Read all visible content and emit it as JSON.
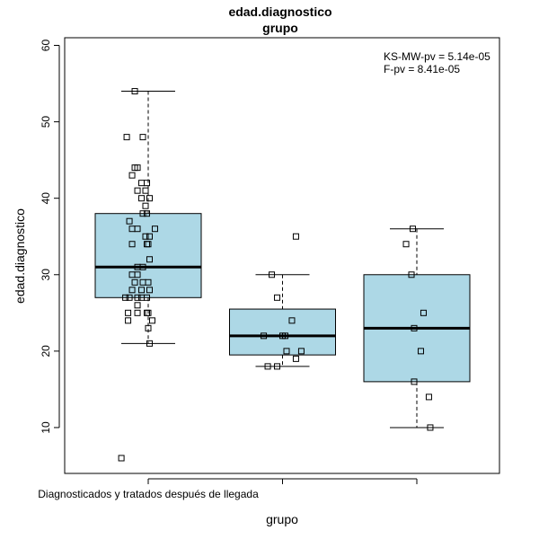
{
  "chart_data": {
    "type": "box",
    "title": "edad.diagnostico",
    "subtitle": "grupo",
    "xlabel": "grupo",
    "ylabel": "edad.diagnostico",
    "ylim": [
      4,
      61
    ],
    "yticks": [
      10,
      20,
      30,
      40,
      50,
      60
    ],
    "annotations": [
      "KS-MW-pv = 5.14e-05",
      "F-pv = 8.41e-05"
    ],
    "box_color": "#add8e6",
    "groups": [
      {
        "label": "Diagnosticados y tratados después de llegada",
        "whisker_low": 21,
        "q1": 27,
        "median": 31,
        "q3": 38,
        "whisker_high": 54,
        "outliers": [
          6
        ],
        "points": [
          [
            0.9,
            54
          ],
          [
            0.84,
            48
          ],
          [
            0.96,
            48
          ],
          [
            0.9,
            44
          ],
          [
            0.92,
            44
          ],
          [
            0.88,
            43
          ],
          [
            0.95,
            42
          ],
          [
            0.99,
            42
          ],
          [
            0.92,
            41
          ],
          [
            0.98,
            41
          ],
          [
            0.95,
            40
          ],
          [
            1.01,
            40
          ],
          [
            0.98,
            39
          ],
          [
            0.96,
            38
          ],
          [
            0.99,
            38
          ],
          [
            0.86,
            37
          ],
          [
            0.88,
            36
          ],
          [
            0.92,
            36
          ],
          [
            1.05,
            36
          ],
          [
            0.98,
            35
          ],
          [
            1.01,
            35
          ],
          [
            0.88,
            34
          ],
          [
            0.99,
            34
          ],
          [
            1.0,
            34
          ],
          [
            1.01,
            32
          ],
          [
            0.92,
            31
          ],
          [
            0.96,
            31
          ],
          [
            0.88,
            30
          ],
          [
            0.92,
            30
          ],
          [
            0.9,
            29
          ],
          [
            0.96,
            29
          ],
          [
            1.0,
            29
          ],
          [
            0.88,
            28
          ],
          [
            0.95,
            28
          ],
          [
            1.01,
            28
          ],
          [
            0.83,
            27
          ],
          [
            0.86,
            27
          ],
          [
            0.92,
            27
          ],
          [
            0.95,
            27
          ],
          [
            0.99,
            27
          ],
          [
            0.92,
            26
          ],
          [
            0.85,
            25
          ],
          [
            0.92,
            25
          ],
          [
            0.99,
            25
          ],
          [
            1.0,
            25
          ],
          [
            0.85,
            24
          ],
          [
            1.03,
            24
          ],
          [
            1.0,
            23
          ],
          [
            1.01,
            21
          ],
          [
            0.8,
            6
          ]
        ]
      },
      {
        "label": "",
        "whisker_low": 18,
        "q1": 19.5,
        "median": 22,
        "q3": 25.5,
        "whisker_high": 30,
        "outliers": [
          35
        ],
        "points": [
          [
            2.1,
            35
          ],
          [
            1.92,
            30
          ],
          [
            1.96,
            27
          ],
          [
            2.07,
            24
          ],
          [
            1.86,
            22
          ],
          [
            2.0,
            22
          ],
          [
            2.02,
            22
          ],
          [
            2.03,
            20
          ],
          [
            2.14,
            20
          ],
          [
            2.1,
            19
          ],
          [
            1.89,
            18
          ],
          [
            1.96,
            18
          ]
        ]
      },
      {
        "label": "",
        "whisker_low": 10,
        "q1": 16,
        "median": 23,
        "q3": 30,
        "whisker_high": 36,
        "outliers": [],
        "points": [
          [
            2.97,
            36
          ],
          [
            2.92,
            34
          ],
          [
            2.96,
            30
          ],
          [
            3.05,
            25
          ],
          [
            2.98,
            23
          ],
          [
            3.03,
            20
          ],
          [
            2.98,
            16
          ],
          [
            3.09,
            14
          ],
          [
            3.1,
            10
          ]
        ]
      }
    ]
  }
}
